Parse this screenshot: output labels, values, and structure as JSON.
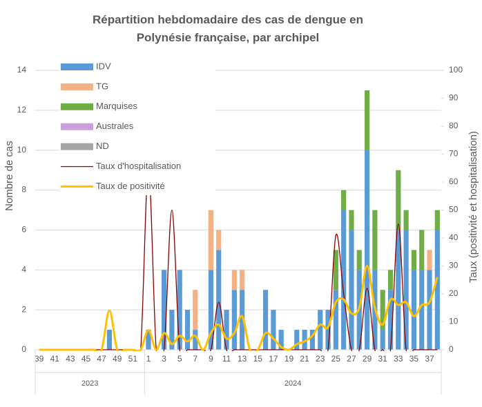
{
  "chart_data": {
    "type": "bar",
    "title": "Répartition hebdomadaire des cas de dengue en Polynésie française, par archipel",
    "ylabel": "Nombre de cas",
    "y2label": "Taux (positivité et hospitalisation)",
    "categories": [
      "39",
      null,
      "41",
      null,
      "43",
      null,
      "45",
      null,
      "47",
      null,
      "49",
      null,
      "51",
      null,
      "1",
      null,
      "3",
      null,
      "5",
      null,
      "7",
      null,
      "9",
      null,
      "11",
      null,
      "13",
      null,
      "15",
      null,
      "17",
      null,
      "19",
      null,
      "21",
      null,
      "23",
      null,
      "25",
      null,
      "27",
      null,
      "29",
      null,
      "31",
      null,
      "33",
      null,
      "35",
      null,
      "37",
      null
    ],
    "groups": [
      {
        "label": "2023",
        "size": 14
      },
      {
        "label": "2024",
        "size": 38
      }
    ],
    "series": [
      {
        "name": "IDV",
        "color": "#5b9bd5",
        "values": [
          0,
          0,
          0,
          0,
          0,
          0,
          0,
          0,
          0,
          1,
          0,
          0,
          0,
          0,
          1,
          0,
          4,
          2,
          4,
          2,
          1,
          0,
          4,
          5,
          2,
          3,
          3,
          0,
          0,
          3,
          2,
          1,
          0,
          1,
          1,
          1,
          2,
          2,
          3,
          7,
          6,
          4,
          10,
          4,
          1,
          3,
          6,
          6,
          4,
          4,
          4,
          6
        ]
      },
      {
        "name": "TG",
        "color": "#f4b183",
        "values": [
          0,
          0,
          0,
          0,
          0,
          0,
          0,
          0,
          0,
          0,
          0,
          0,
          0,
          0,
          0,
          0,
          0,
          0,
          0,
          0,
          2,
          0,
          3,
          1,
          0,
          1,
          1,
          0,
          0,
          0,
          0,
          0,
          0,
          0,
          0,
          0,
          0,
          0,
          0,
          0,
          0,
          0,
          0,
          0,
          0,
          0,
          0,
          0,
          0,
          0,
          1,
          0
        ]
      },
      {
        "name": "Marquises",
        "color": "#70ad47",
        "values": [
          0,
          0,
          0,
          0,
          0,
          0,
          0,
          0,
          0,
          0,
          0,
          0,
          0,
          0,
          0,
          0,
          0,
          0,
          0,
          0,
          0,
          0,
          0,
          0,
          0,
          0,
          0,
          0,
          0,
          0,
          0,
          0,
          0,
          0,
          0,
          0,
          0,
          0,
          2,
          1,
          1,
          1,
          3,
          3,
          2,
          1,
          3,
          1,
          1,
          2,
          0,
          1
        ]
      },
      {
        "name": "Australes",
        "color": "#c9a0dc",
        "values": [
          0,
          0,
          0,
          0,
          0,
          0,
          0,
          0,
          0,
          0,
          0,
          0,
          0,
          0,
          0,
          0,
          0,
          0,
          0,
          0,
          0,
          0,
          0,
          0,
          0,
          0,
          0,
          0,
          0,
          0,
          0,
          0,
          0,
          0,
          0,
          0,
          0,
          0,
          0,
          0,
          0,
          0,
          0,
          0,
          0,
          0,
          0,
          0,
          0,
          0,
          0,
          0
        ]
      },
      {
        "name": "ND",
        "color": "#a5a5a5",
        "values": [
          0,
          0,
          0,
          0,
          0,
          0,
          0,
          0,
          0,
          0,
          0,
          0,
          0,
          0,
          0,
          0,
          0,
          0,
          0,
          0,
          0,
          0,
          0,
          0,
          0,
          0,
          0,
          0,
          0,
          0,
          0,
          0,
          0,
          0,
          0,
          0,
          0,
          0,
          0,
          0,
          0,
          0,
          0,
          0,
          0,
          0,
          0,
          0,
          0,
          0,
          0,
          0
        ]
      },
      {
        "name": "Taux d'hospitalisation",
        "color": "#8b0000",
        "axis": "y2",
        "values": [
          0,
          0,
          0,
          0,
          0,
          0,
          0,
          0,
          0,
          0,
          0,
          0,
          0,
          0,
          65,
          0,
          0,
          50,
          0,
          0,
          0,
          0,
          0,
          17,
          0,
          0,
          0,
          0,
          0,
          0,
          0,
          0,
          0,
          0,
          0,
          0,
          0,
          0,
          41,
          20,
          0,
          0,
          22,
          0,
          0,
          0,
          45,
          0,
          0,
          0,
          0,
          0
        ]
      },
      {
        "name": "Taux de positivité",
        "color": "#ffc000",
        "axis": "y2",
        "values": [
          0,
          0,
          0,
          0,
          0,
          0,
          0,
          0,
          0,
          14,
          0,
          0,
          0,
          0,
          7,
          0,
          6,
          2,
          5,
          3,
          5,
          0,
          6,
          9,
          4,
          6,
          12,
          0,
          0,
          6,
          4,
          1,
          0,
          2,
          3,
          5,
          9,
          8,
          17,
          18,
          13,
          15,
          30,
          15,
          9,
          18,
          16,
          17,
          12,
          16,
          17,
          26
        ]
      }
    ],
    "ylim": [
      0,
      14
    ],
    "yticks": [
      0,
      2,
      4,
      6,
      8,
      10,
      12,
      14
    ],
    "y2lim": [
      0,
      100
    ],
    "y2ticks": [
      0,
      10,
      20,
      30,
      40,
      50,
      60,
      70,
      80,
      90,
      100
    ],
    "grid": true,
    "legend": "top-left"
  }
}
